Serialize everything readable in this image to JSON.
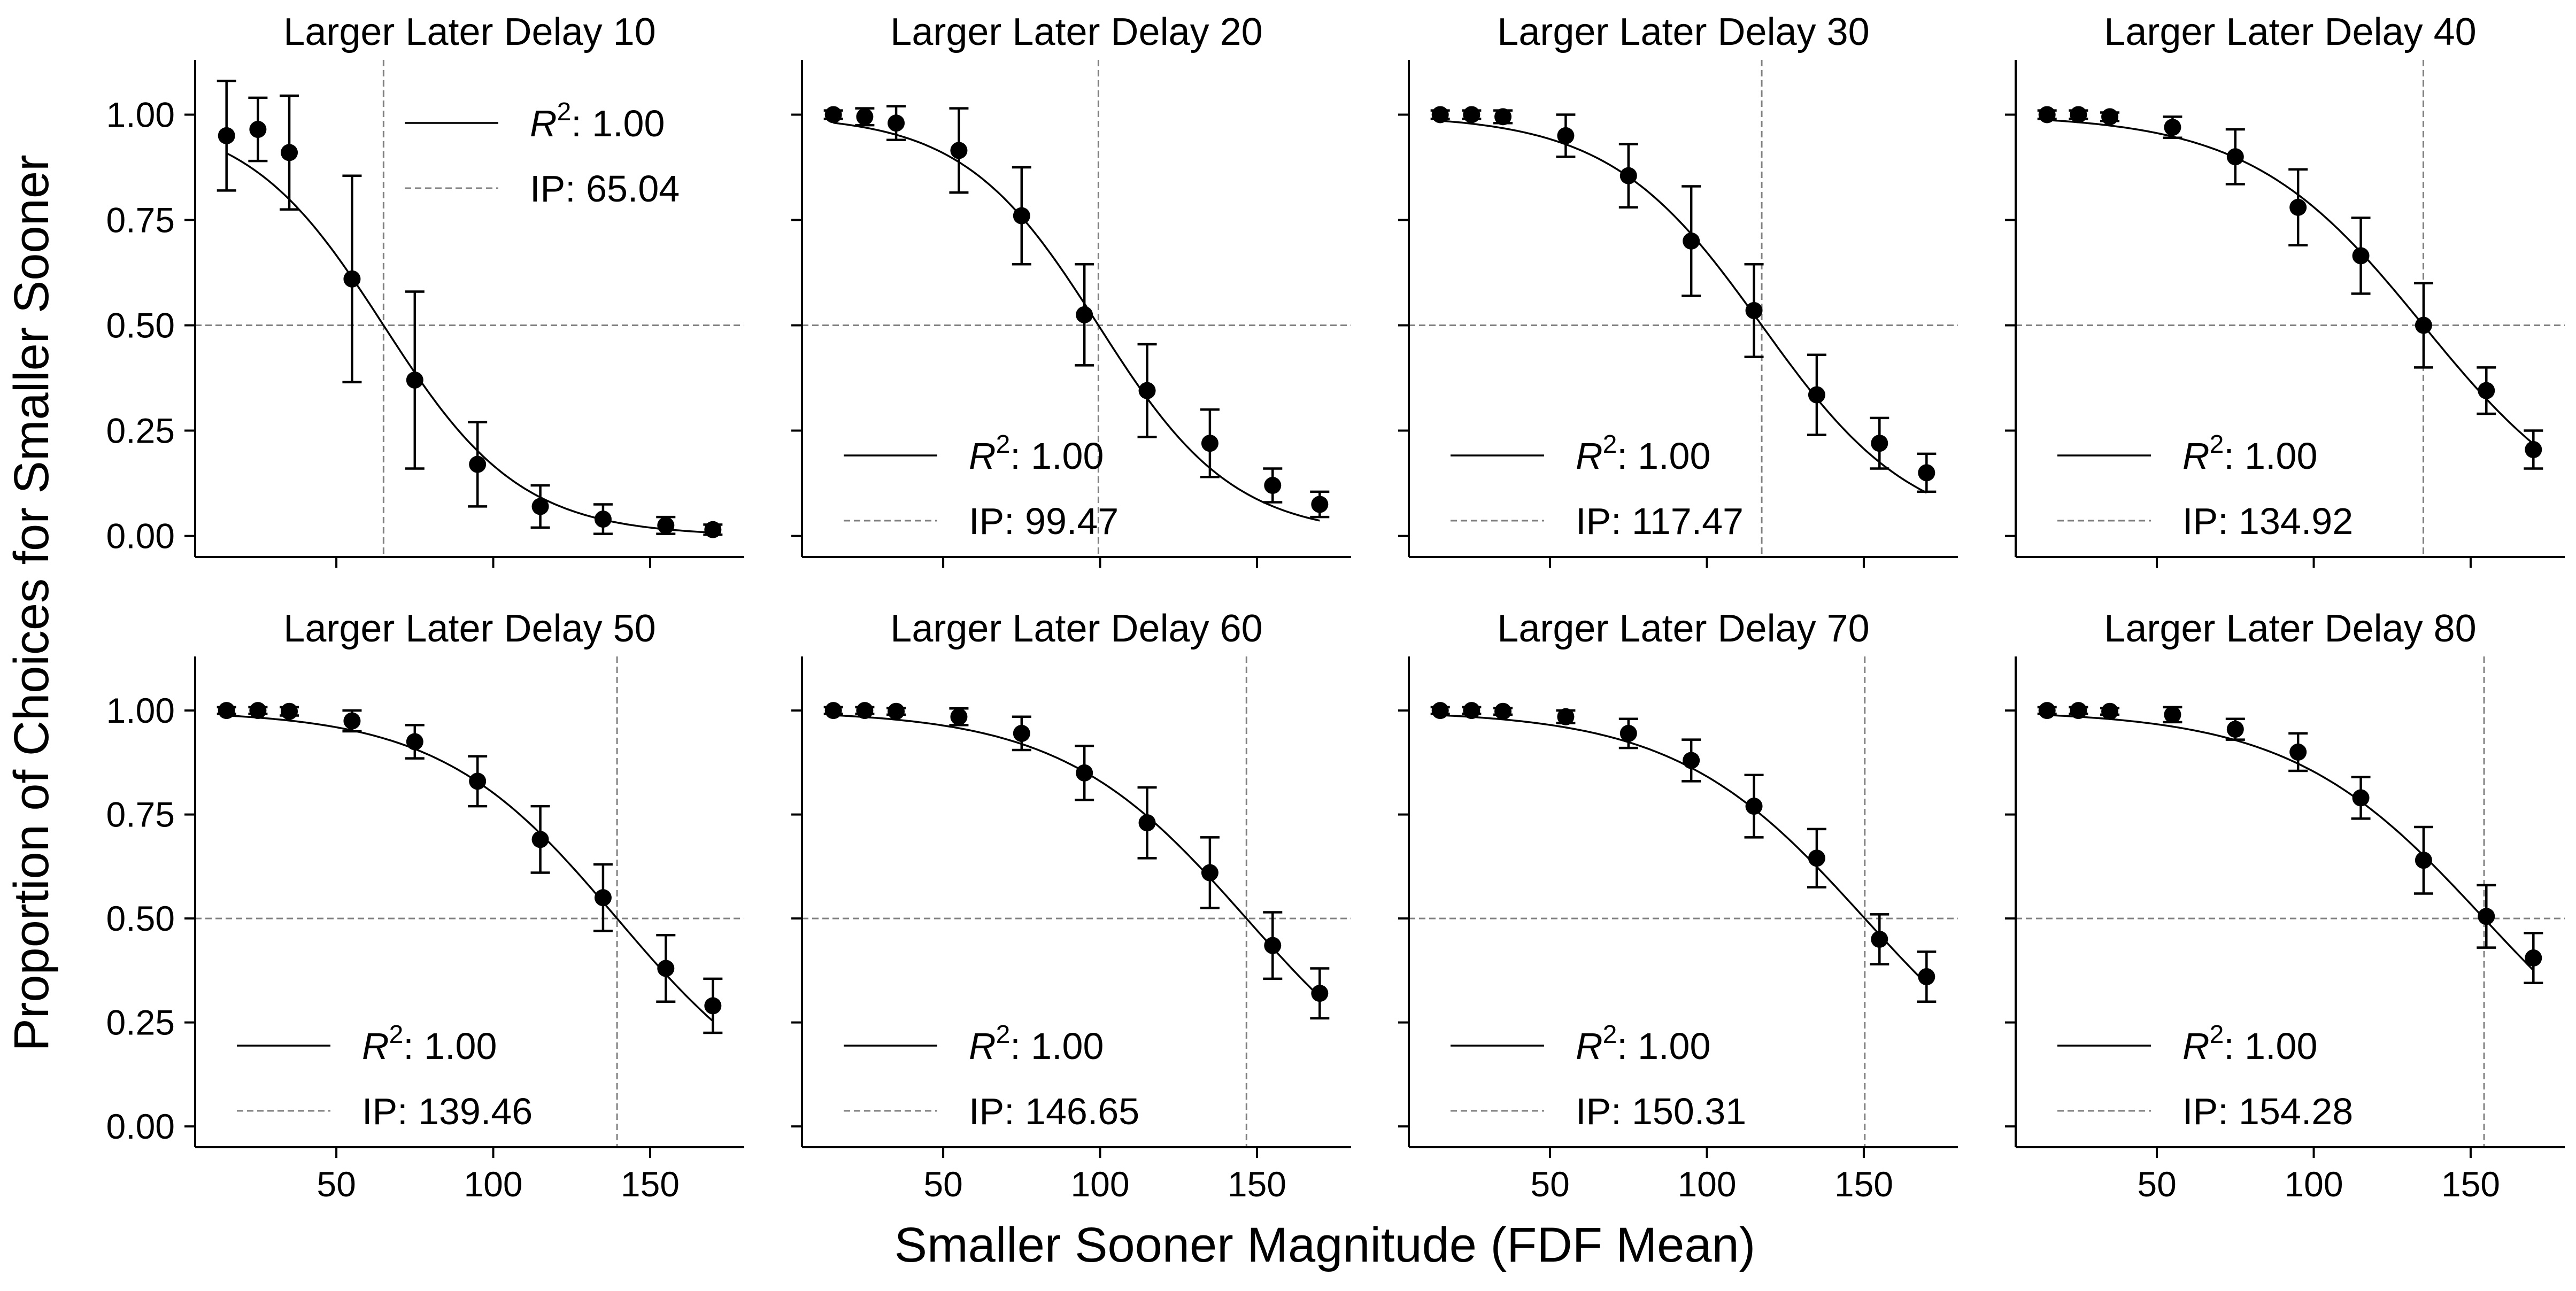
{
  "figure": {
    "xlabel": "Smaller Sooner Magnitude (FDF Mean)",
    "ylabel": "Proportion of Choices for Smaller Sooner"
  },
  "chart_data": [
    {
      "type": "scatter",
      "title": "Larger Later Delay 10",
      "xlim": [
        5,
        180
      ],
      "ylim": [
        -0.05,
        1.13
      ],
      "xticks": [
        50,
        100,
        150
      ],
      "yticks": [
        0.0,
        0.25,
        0.5,
        0.75,
        1.0
      ],
      "x": [
        15,
        25,
        35,
        55,
        75,
        95,
        115,
        135,
        155,
        170
      ],
      "y": [
        0.95,
        0.965,
        0.91,
        0.61,
        0.37,
        0.17,
        0.07,
        0.04,
        0.025,
        0.015
      ],
      "err": [
        0.13,
        0.075,
        0.135,
        0.245,
        0.21,
        0.1,
        0.05,
        0.035,
        0.02,
        0.012
      ],
      "ip": 65.04,
      "ip_label": "IP: 65.04",
      "r2_label": ": 1.00",
      "legend": "upper right"
    },
    {
      "type": "scatter",
      "title": "Larger Later Delay 20",
      "xlim": [
        5,
        180
      ],
      "ylim": [
        -0.05,
        1.13
      ],
      "xticks": [
        50,
        100,
        150
      ],
      "yticks": [
        0.0,
        0.25,
        0.5,
        0.75,
        1.0
      ],
      "x": [
        15,
        25,
        35,
        55,
        75,
        95,
        115,
        135,
        155,
        170
      ],
      "y": [
        1.0,
        0.995,
        0.98,
        0.915,
        0.76,
        0.525,
        0.345,
        0.22,
        0.12,
        0.075
      ],
      "err": [
        0.01,
        0.02,
        0.04,
        0.1,
        0.115,
        0.12,
        0.11,
        0.08,
        0.04,
        0.03
      ],
      "ip": 99.47,
      "ip_label": "IP: 99.47",
      "r2_label": ": 1.00",
      "legend": "lower left"
    },
    {
      "type": "scatter",
      "title": "Larger Later Delay 30",
      "xlim": [
        5,
        180
      ],
      "ylim": [
        -0.05,
        1.13
      ],
      "xticks": [
        50,
        100,
        150
      ],
      "yticks": [
        0.0,
        0.25,
        0.5,
        0.75,
        1.0
      ],
      "x": [
        15,
        25,
        35,
        55,
        75,
        95,
        115,
        135,
        155,
        170
      ],
      "y": [
        1.0,
        1.0,
        0.995,
        0.95,
        0.855,
        0.7,
        0.535,
        0.335,
        0.22,
        0.15
      ],
      "err": [
        0.01,
        0.01,
        0.015,
        0.05,
        0.075,
        0.13,
        0.11,
        0.095,
        0.06,
        0.045
      ],
      "ip": 117.47,
      "ip_label": "IP: 117.47",
      "r2_label": ": 1.00",
      "legend": "lower left"
    },
    {
      "type": "scatter",
      "title": "Larger Later Delay 40",
      "xlim": [
        5,
        180
      ],
      "ylim": [
        -0.05,
        1.13
      ],
      "xticks": [
        50,
        100,
        150
      ],
      "yticks": [
        0.0,
        0.25,
        0.5,
        0.75,
        1.0
      ],
      "x": [
        15,
        25,
        35,
        55,
        75,
        95,
        115,
        135,
        155,
        170
      ],
      "y": [
        1.0,
        1.0,
        0.995,
        0.97,
        0.9,
        0.78,
        0.665,
        0.5,
        0.345,
        0.205
      ],
      "err": [
        0.01,
        0.01,
        0.01,
        0.025,
        0.065,
        0.09,
        0.09,
        0.1,
        0.055,
        0.045
      ],
      "ip": 134.92,
      "ip_label": "IP: 134.92",
      "r2_label": ": 1.00",
      "legend": "lower left"
    },
    {
      "type": "scatter",
      "title": "Larger Later Delay 50",
      "xlim": [
        5,
        180
      ],
      "ylim": [
        -0.05,
        1.13
      ],
      "xticks": [
        50,
        100,
        150
      ],
      "yticks": [
        0.0,
        0.25,
        0.5,
        0.75,
        1.0
      ],
      "x": [
        15,
        25,
        35,
        55,
        75,
        95,
        115,
        135,
        155,
        170
      ],
      "y": [
        1.0,
        1.0,
        0.998,
        0.975,
        0.925,
        0.83,
        0.69,
        0.55,
        0.38,
        0.29
      ],
      "err": [
        0.008,
        0.008,
        0.01,
        0.025,
        0.04,
        0.06,
        0.08,
        0.08,
        0.08,
        0.065
      ],
      "ip": 139.46,
      "ip_label": "IP: 139.46",
      "r2_label": ": 1.00",
      "legend": "lower left"
    },
    {
      "type": "scatter",
      "title": "Larger Later Delay 60",
      "xlim": [
        5,
        180
      ],
      "ylim": [
        -0.05,
        1.13
      ],
      "xticks": [
        50,
        100,
        150
      ],
      "yticks": [
        0.0,
        0.25,
        0.5,
        0.75,
        1.0
      ],
      "x": [
        15,
        25,
        35,
        55,
        75,
        95,
        115,
        135,
        155,
        170
      ],
      "y": [
        1.0,
        1.0,
        0.998,
        0.985,
        0.945,
        0.85,
        0.73,
        0.61,
        0.435,
        0.32
      ],
      "err": [
        0.008,
        0.008,
        0.008,
        0.02,
        0.04,
        0.065,
        0.085,
        0.085,
        0.08,
        0.06
      ],
      "ip": 146.65,
      "ip_label": "IP: 146.65",
      "r2_label": ": 1.00",
      "legend": "lower left"
    },
    {
      "type": "scatter",
      "title": "Larger Later Delay 70",
      "xlim": [
        5,
        180
      ],
      "ylim": [
        -0.05,
        1.13
      ],
      "xticks": [
        50,
        100,
        150
      ],
      "yticks": [
        0.0,
        0.25,
        0.5,
        0.75,
        1.0
      ],
      "x": [
        15,
        25,
        35,
        55,
        75,
        95,
        115,
        135,
        155,
        170
      ],
      "y": [
        1.0,
        1.0,
        0.998,
        0.985,
        0.945,
        0.88,
        0.77,
        0.645,
        0.45,
        0.36
      ],
      "err": [
        0.008,
        0.008,
        0.008,
        0.015,
        0.035,
        0.05,
        0.075,
        0.07,
        0.06,
        0.06
      ],
      "ip": 150.31,
      "ip_label": "IP: 150.31",
      "r2_label": ": 1.00",
      "legend": "lower left"
    },
    {
      "type": "scatter",
      "title": "Larger Later Delay 80",
      "xlim": [
        5,
        180
      ],
      "ylim": [
        -0.05,
        1.13
      ],
      "xticks": [
        50,
        100,
        150
      ],
      "yticks": [
        0.0,
        0.25,
        0.5,
        0.75,
        1.0
      ],
      "x": [
        15,
        25,
        35,
        55,
        75,
        95,
        115,
        135,
        155,
        170
      ],
      "y": [
        1.0,
        1.0,
        0.998,
        0.99,
        0.955,
        0.9,
        0.79,
        0.64,
        0.505,
        0.405
      ],
      "err": [
        0.008,
        0.008,
        0.008,
        0.018,
        0.025,
        0.045,
        0.05,
        0.08,
        0.075,
        0.06
      ],
      "ip": 154.28,
      "ip_label": "IP: 154.28",
      "r2_label": ": 1.00",
      "legend": "lower left"
    }
  ]
}
